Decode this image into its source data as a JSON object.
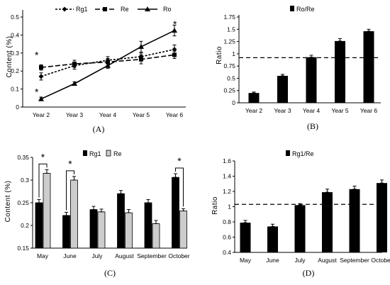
{
  "chart_data": [
    {
      "panel": "(A)",
      "type": "line",
      "ylabel": "Content (%)",
      "categories": [
        "Year 2",
        "Year 3",
        "Year 4",
        "Year 5",
        "Year 6"
      ],
      "yticks": [
        "0",
        "0.1",
        "0.2",
        "0.3",
        "0.4",
        "0.5"
      ],
      "ylim": [
        0,
        0.5
      ],
      "series": [
        {
          "name": "Rg1",
          "marker": "diamond",
          "dash": "3,2",
          "values": [
            0.17,
            0.23,
            0.26,
            0.28,
            0.32
          ],
          "errors": [
            0.02,
            0.02,
            0.02,
            0.02,
            0.025
          ]
        },
        {
          "name": "Re",
          "marker": "square",
          "dash": "7,3",
          "values": [
            0.22,
            0.24,
            0.25,
            0.265,
            0.29
          ],
          "errors": [
            0.015,
            0.02,
            0.02,
            0.025,
            0.02
          ]
        },
        {
          "name": "Ro",
          "marker": "triangle",
          "dash": "",
          "values": [
            0.045,
            0.13,
            0.23,
            0.335,
            0.425
          ],
          "errors": [
            0.01,
            0.01,
            0.015,
            0.03,
            0.03
          ]
        }
      ],
      "annotations": [
        {
          "text": "*",
          "category": "Year 2",
          "y": 0.29
        },
        {
          "text": "*",
          "category": "Year 2",
          "y": 0.085
        },
        {
          "text": "*",
          "category": "Year 6",
          "y": 0.46
        }
      ],
      "grid": false,
      "legend": "top"
    },
    {
      "panel": "(B)",
      "type": "bar",
      "ylabel": "Ratio",
      "categories": [
        "Year 2",
        "Year 3",
        "Year 4",
        "Year 5",
        "Year 6"
      ],
      "yticks": [
        "0",
        "0.25",
        "0.5",
        "0.75",
        "1",
        "1.25",
        "1.5",
        "1.75"
      ],
      "ylim": [
        0,
        1.75
      ],
      "series": [
        {
          "name": "Ro/Re",
          "values": [
            0.2,
            0.55,
            0.93,
            1.26,
            1.46
          ],
          "errors": [
            0.02,
            0.03,
            0.04,
            0.05,
            0.04
          ]
        }
      ],
      "reference_line": 0.92,
      "grid": false,
      "legend": "top"
    },
    {
      "panel": "(C)",
      "type": "bar",
      "ylabel": "Content (%)",
      "categories": [
        "May",
        "June",
        "July",
        "August",
        "September",
        "October"
      ],
      "yticks": [
        "0.15",
        "0.2",
        "0.25",
        "0.3",
        "0.35"
      ],
      "ylim": [
        0.15,
        0.35
      ],
      "series": [
        {
          "name": "Rg1",
          "color": "#000000",
          "values": [
            0.25,
            0.222,
            0.235,
            0.27,
            0.25,
            0.306
          ],
          "errors": [
            0.007,
            0.007,
            0.007,
            0.007,
            0.007,
            0.008
          ]
        },
        {
          "name": "Re",
          "color": "#cccccc",
          "values": [
            0.315,
            0.3,
            0.23,
            0.228,
            0.204,
            0.232
          ],
          "errors": [
            0.008,
            0.008,
            0.006,
            0.007,
            0.007,
            0.005
          ]
        }
      ],
      "annotations": [
        {
          "text": "*",
          "category": "May"
        },
        {
          "text": "*",
          "category": "June"
        },
        {
          "text": "*",
          "category": "October"
        }
      ],
      "grid": false,
      "legend": "top"
    },
    {
      "panel": "(D)",
      "type": "bar",
      "ylabel": "Ratio",
      "categories": [
        "May",
        "June",
        "July",
        "August",
        "September",
        "October"
      ],
      "yticks": [
        "0.4",
        "0.6",
        "0.8",
        "1",
        "1.2",
        "1.4",
        "1.6"
      ],
      "ylim": [
        0.4,
        1.6
      ],
      "series": [
        {
          "name": "Rg1/Re",
          "values": [
            0.79,
            0.74,
            1.02,
            1.19,
            1.23,
            1.31
          ],
          "errors": [
            0.03,
            0.03,
            0.02,
            0.04,
            0.04,
            0.04
          ]
        }
      ],
      "reference_line": 1.03,
      "grid": false,
      "legend": "top"
    }
  ]
}
